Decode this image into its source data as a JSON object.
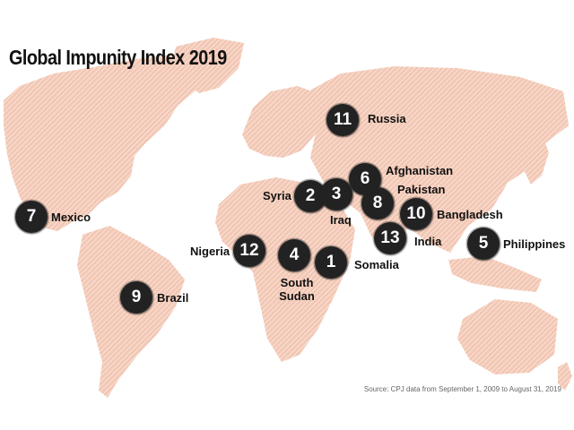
{
  "title": "Global Impunity Index 2019",
  "source": "Source: CPJ data from September 1, 2009 to August 31, 2019",
  "colors": {
    "land": "#f2c7b4",
    "hatch": "#ffffff",
    "marker": "#222222",
    "marker_text": "#ffffff",
    "label": "#111111"
  },
  "markers": [
    {
      "rank": "1",
      "country": "Somalia"
    },
    {
      "rank": "2",
      "country": "Syria"
    },
    {
      "rank": "3",
      "country": "Iraq"
    },
    {
      "rank": "4",
      "country": "South Sudan"
    },
    {
      "rank": "5",
      "country": "Philippines"
    },
    {
      "rank": "6",
      "country": "Afghanistan"
    },
    {
      "rank": "7",
      "country": "Mexico"
    },
    {
      "rank": "8",
      "country": "Pakistan"
    },
    {
      "rank": "9",
      "country": "Brazil"
    },
    {
      "rank": "10",
      "country": "Bangladesh"
    },
    {
      "rank": "11",
      "country": "Russia"
    },
    {
      "rank": "12",
      "country": "Nigeria"
    },
    {
      "rank": "13",
      "country": "India"
    }
  ]
}
